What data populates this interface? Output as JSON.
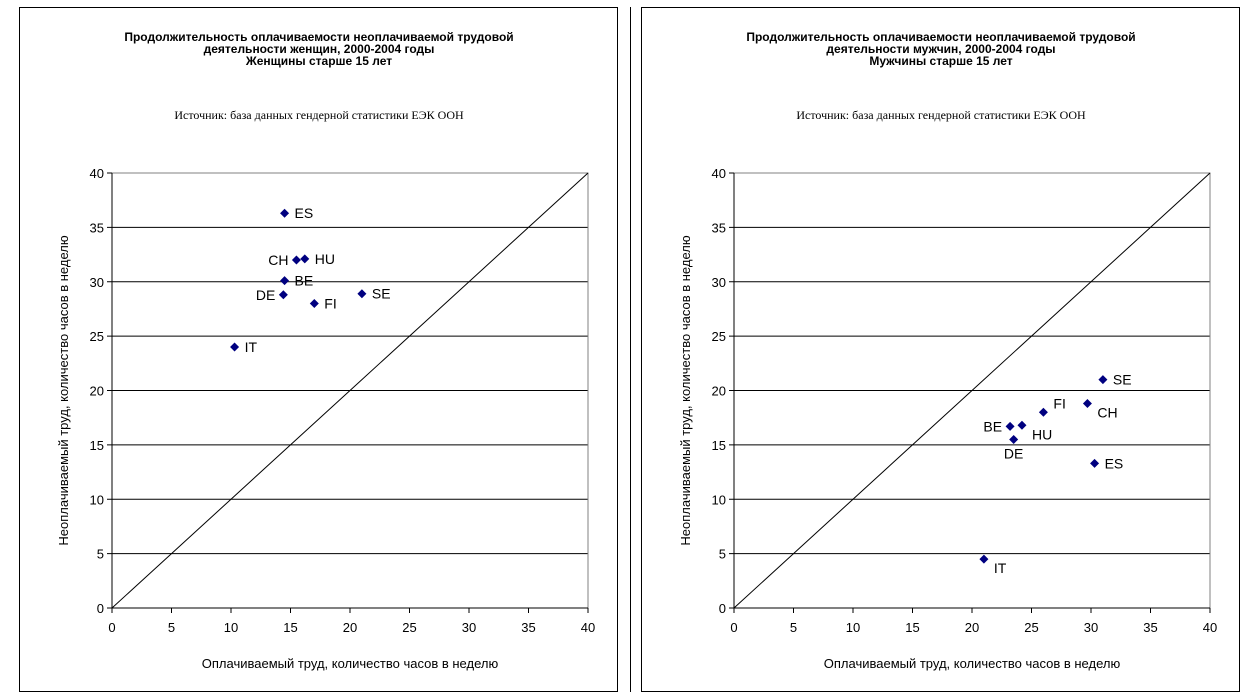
{
  "chart_data": [
    {
      "type": "scatter",
      "title": [
        "Продолжительность оплачиваемости неоплачиваемой трудовой",
        "деятельности женщин, 2000-2004 годы",
        "Женщины старше 15 лет"
      ],
      "source": "Источник:  база данных гендерной статистики ЕЭК ООН",
      "xlabel": "Оплачиваемый труд, количество часов в неделю",
      "ylabel": "Неоплачиваемый труд, количество часов в неделю",
      "xlim": [
        0,
        40
      ],
      "ylim": [
        0,
        40
      ],
      "xticks": [
        0,
        5,
        10,
        15,
        20,
        25,
        30,
        35,
        40
      ],
      "yticks": [
        0,
        5,
        10,
        15,
        20,
        25,
        30,
        35,
        40
      ],
      "grid": "horizontal",
      "diagonal": true,
      "marker_color": "#000080",
      "points": [
        {
          "label": "ES",
          "x": 14.5,
          "y": 36.3,
          "label_pos": "right"
        },
        {
          "label": "CH",
          "x": 15.5,
          "y": 32.0,
          "label_pos": "left"
        },
        {
          "label": "HU",
          "x": 16.2,
          "y": 32.1,
          "label_pos": "right"
        },
        {
          "label": "BE",
          "x": 14.5,
          "y": 30.1,
          "label_pos": "right"
        },
        {
          "label": "DE",
          "x": 14.4,
          "y": 28.8,
          "label_pos": "left"
        },
        {
          "label": "FI",
          "x": 17.0,
          "y": 28.0,
          "label_pos": "right"
        },
        {
          "label": "SE",
          "x": 21.0,
          "y": 28.9,
          "label_pos": "right"
        },
        {
          "label": "IT",
          "x": 10.3,
          "y": 24.0,
          "label_pos": "right"
        }
      ]
    },
    {
      "type": "scatter",
      "title": [
        "Продолжительность оплачиваемости неоплачиваемой трудовой",
        "деятельности мужчин, 2000-2004 годы",
        "Мужчины старше 15 лет"
      ],
      "source": "Источник:  база данных гендерной статистики ЕЭК ООН",
      "xlabel": "Оплачиваемый труд, количество часов в неделю",
      "ylabel": "Неоплачиваемый труд, количество часов в неделю",
      "xlim": [
        0,
        40
      ],
      "ylim": [
        0,
        40
      ],
      "xticks": [
        0,
        5,
        10,
        15,
        20,
        25,
        30,
        35,
        40
      ],
      "yticks": [
        0,
        5,
        10,
        15,
        20,
        25,
        30,
        35,
        40
      ],
      "grid": "horizontal",
      "diagonal": true,
      "marker_color": "#000080",
      "points": [
        {
          "label": "SE",
          "x": 31.0,
          "y": 21.0,
          "label_pos": "right"
        },
        {
          "label": "FI",
          "x": 26.0,
          "y": 18.0,
          "label_pos": "above-right"
        },
        {
          "label": "CH",
          "x": 29.7,
          "y": 18.8,
          "label_pos": "below-right"
        },
        {
          "label": "BE",
          "x": 23.2,
          "y": 16.7,
          "label_pos": "left"
        },
        {
          "label": "HU",
          "x": 24.2,
          "y": 16.8,
          "label_pos": "below-right"
        },
        {
          "label": "DE",
          "x": 23.5,
          "y": 15.5,
          "label_pos": "below"
        },
        {
          "label": "ES",
          "x": 30.3,
          "y": 13.3,
          "label_pos": "right"
        },
        {
          "label": "IT",
          "x": 21.0,
          "y": 4.5,
          "label_pos": "below-right"
        }
      ]
    }
  ]
}
